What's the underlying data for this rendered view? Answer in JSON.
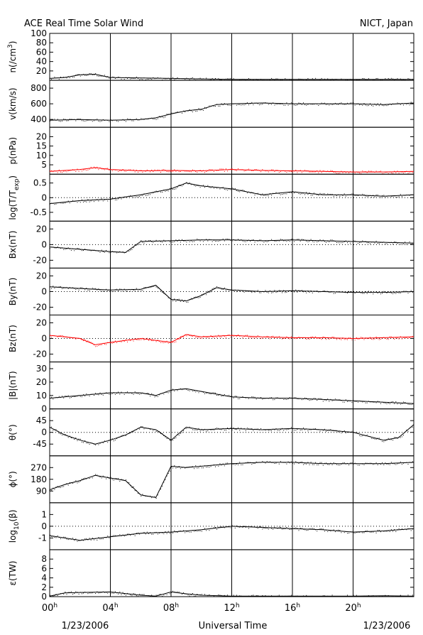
{
  "header": {
    "title": "ACE Real Time Solar Wind",
    "source": "NICT, Japan"
  },
  "footer": {
    "date_left": "1/23/2006",
    "xlabel": "Universal Time",
    "date_right": "1/23/2006"
  },
  "colors": {
    "ink": "#000000",
    "highlight": "#ff0000"
  },
  "chart_data": {
    "type": "line",
    "x_axis": {
      "unit": "hour",
      "range": [
        0,
        24
      ],
      "ticks": [
        {
          "base": "00",
          "sup": "h"
        },
        {
          "base": "04",
          "sup": "h"
        },
        {
          "base": "08",
          "sup": "h"
        },
        {
          "base": "12",
          "sup": "h"
        },
        {
          "base": "16",
          "sup": "h"
        },
        {
          "base": "20",
          "sup": "h"
        }
      ],
      "tick_values": [
        0,
        4,
        8,
        12,
        16,
        20
      ]
    },
    "panels": [
      {
        "id": "n",
        "ylabel": {
          "base": "n(/cm",
          "sup": "3",
          "tail": ")"
        },
        "ylim": [
          0,
          100
        ],
        "yticks": [
          20,
          40,
          60,
          80,
          100
        ],
        "tick_labels": [
          "20",
          "40",
          "60",
          "80",
          "100"
        ],
        "color": "#000000",
        "x": [
          0,
          1,
          2,
          3,
          4,
          6,
          8,
          10,
          12,
          14,
          16,
          18,
          20,
          22,
          24
        ],
        "y": [
          4,
          6,
          12,
          13,
          6,
          5,
          4,
          3,
          2,
          2,
          2,
          2,
          2,
          2,
          2
        ]
      },
      {
        "id": "v",
        "ylabel": {
          "base": "v(km/s)"
        },
        "ylim": [
          300,
          900
        ],
        "yticks": [
          400,
          600,
          800
        ],
        "tick_labels": [
          "400",
          "600",
          "800"
        ],
        "color": "#000000",
        "x": [
          0,
          2,
          4,
          6,
          7,
          8,
          9,
          10,
          11,
          12,
          14,
          16,
          18,
          20,
          22,
          24
        ],
        "y": [
          390,
          400,
          390,
          400,
          420,
          470,
          510,
          530,
          590,
          600,
          610,
          600,
          600,
          600,
          590,
          610
        ]
      },
      {
        "id": "p",
        "ylabel": {
          "base": "p(nPa)"
        },
        "ylim": [
          0,
          25
        ],
        "yticks": [
          5,
          10,
          15,
          20
        ],
        "tick_labels": [
          "5",
          "10",
          "15",
          "20"
        ],
        "color": "#ff0000",
        "x": [
          0,
          2,
          3,
          4,
          6,
          8,
          10,
          12,
          14,
          16,
          18,
          20,
          22,
          24
        ],
        "y": [
          1.5,
          2.5,
          3.5,
          2.5,
          1.8,
          2.0,
          1.8,
          2.5,
          2.0,
          1.8,
          1.5,
          1.2,
          1.2,
          1.5
        ]
      },
      {
        "id": "logT",
        "ylabel": {
          "base": "log(T/T",
          "sub": "exp",
          "tail": ")"
        },
        "ylim": [
          -0.8,
          0.8
        ],
        "yticks": [
          -0.5,
          0,
          0.5
        ],
        "tick_labels": [
          "-0.5",
          "0",
          "0.5"
        ],
        "zero_line": true,
        "color": "#000000",
        "x": [
          0,
          2,
          4,
          6,
          8,
          9,
          10,
          12,
          14,
          16,
          18,
          20,
          22,
          24
        ],
        "y": [
          -0.2,
          -0.1,
          -0.05,
          0.1,
          0.3,
          0.5,
          0.4,
          0.3,
          0.1,
          0.2,
          0.1,
          0.1,
          0.05,
          0.1
        ]
      },
      {
        "id": "Bx",
        "ylabel": {
          "base": "Bx(nT)"
        },
        "ylim": [
          -30,
          30
        ],
        "yticks": [
          -20,
          0,
          20
        ],
        "tick_labels": [
          "-20",
          "0",
          "20"
        ],
        "zero_line": true,
        "color": "#000000",
        "x": [
          0,
          2,
          4,
          5,
          6,
          8,
          10,
          12,
          14,
          16,
          18,
          20,
          22,
          24
        ],
        "y": [
          -3,
          -6,
          -9,
          -10,
          4,
          5,
          6,
          6,
          5,
          6,
          5,
          4,
          3,
          2
        ]
      },
      {
        "id": "By",
        "ylabel": {
          "base": "By(nT)"
        },
        "ylim": [
          -30,
          30
        ],
        "yticks": [
          -20,
          0,
          20
        ],
        "tick_labels": [
          "-20",
          "0",
          "20"
        ],
        "zero_line": true,
        "color": "#000000",
        "x": [
          0,
          2,
          4,
          6,
          7,
          8,
          9,
          10,
          11,
          12,
          14,
          16,
          18,
          20,
          22,
          24
        ],
        "y": [
          6,
          4,
          2,
          3,
          8,
          -10,
          -12,
          -5,
          5,
          2,
          0,
          1,
          0,
          -1,
          -1,
          0
        ]
      },
      {
        "id": "Bz",
        "ylabel": {
          "base": "Bz(nT)"
        },
        "ylim": [
          -30,
          30
        ],
        "yticks": [
          -20,
          0,
          20
        ],
        "tick_labels": [
          "-20",
          "0",
          "20"
        ],
        "zero_line": true,
        "color": "#ff0000",
        "x": [
          0,
          2,
          3,
          4,
          6,
          8,
          9,
          10,
          12,
          14,
          16,
          18,
          20,
          22,
          24
        ],
        "y": [
          4,
          0,
          -8,
          -5,
          0,
          -5,
          5,
          2,
          4,
          2,
          1,
          1,
          0,
          1,
          2
        ]
      },
      {
        "id": "B",
        "ylabel": {
          "base": "|B|(nT)"
        },
        "ylim": [
          0,
          35
        ],
        "yticks": [
          0,
          10,
          20,
          30
        ],
        "tick_labels": [
          "0",
          "10",
          "20",
          "30"
        ],
        "color": "#000000",
        "x": [
          0,
          2,
          4,
          6,
          7,
          8,
          9,
          10,
          11,
          12,
          14,
          16,
          18,
          20,
          22,
          24
        ],
        "y": [
          8,
          10,
          12,
          12,
          10,
          14,
          15,
          13,
          11,
          9,
          8,
          8,
          7,
          6,
          5,
          4
        ]
      },
      {
        "id": "theta",
        "ylabel": {
          "base": "θ(°)"
        },
        "ylim": [
          -90,
          90
        ],
        "yticks": [
          -45,
          0,
          45
        ],
        "tick_labels": [
          "-45",
          "0",
          "45"
        ],
        "zero_line": true,
        "color": "#000000",
        "x": [
          0,
          1,
          2,
          3,
          4,
          5,
          6,
          7,
          8,
          9,
          10,
          12,
          14,
          16,
          18,
          20,
          22,
          23,
          24
        ],
        "y": [
          20,
          -10,
          -30,
          -45,
          -30,
          -10,
          20,
          10,
          -30,
          20,
          10,
          15,
          10,
          15,
          10,
          0,
          -30,
          -20,
          30
        ]
      },
      {
        "id": "phi",
        "ylabel": {
          "base": "ϕ(°)"
        },
        "ylim": [
          0,
          360
        ],
        "yticks": [
          90,
          180,
          270
        ],
        "tick_labels": [
          "90",
          "180",
          "270"
        ],
        "color": "#000000",
        "x": [
          0,
          1,
          2,
          3,
          4,
          5,
          6,
          7,
          8,
          9,
          10,
          12,
          14,
          16,
          18,
          20,
          22,
          24
        ],
        "y": [
          100,
          140,
          170,
          210,
          190,
          170,
          60,
          40,
          280,
          270,
          280,
          300,
          310,
          310,
          300,
          300,
          300,
          310
        ]
      },
      {
        "id": "beta",
        "ylabel": {
          "base": "log",
          "sub": "10",
          "tail": "(β)"
        },
        "ylim": [
          -2,
          2
        ],
        "yticks": [
          -1,
          0,
          1
        ],
        "tick_labels": [
          "-1",
          "0",
          "1"
        ],
        "zero_line": true,
        "color": "#000000",
        "x": [
          0,
          2,
          4,
          6,
          8,
          10,
          12,
          14,
          16,
          18,
          20,
          22,
          24
        ],
        "y": [
          -0.8,
          -1.2,
          -0.9,
          -0.6,
          -0.5,
          -0.3,
          0,
          -0.1,
          -0.2,
          -0.3,
          -0.5,
          -0.4,
          -0.2
        ]
      },
      {
        "id": "epsilon",
        "ylabel": {
          "base": "ε(TW)"
        },
        "ylim": [
          0,
          10
        ],
        "yticks": [
          0,
          2,
          4,
          6,
          8
        ],
        "tick_labels": [
          "0",
          "2",
          "4",
          "6",
          "8"
        ],
        "color": "#000000",
        "x": [
          0,
          1,
          2,
          4,
          6,
          7,
          8,
          9,
          10,
          12,
          14,
          16,
          18,
          20,
          22,
          24
        ],
        "y": [
          0.1,
          0.8,
          0.9,
          1.0,
          0.3,
          0.1,
          1.0,
          0.6,
          0.3,
          0.1,
          0.1,
          0.1,
          0.1,
          0.1,
          0.2,
          0.1
        ]
      }
    ]
  }
}
